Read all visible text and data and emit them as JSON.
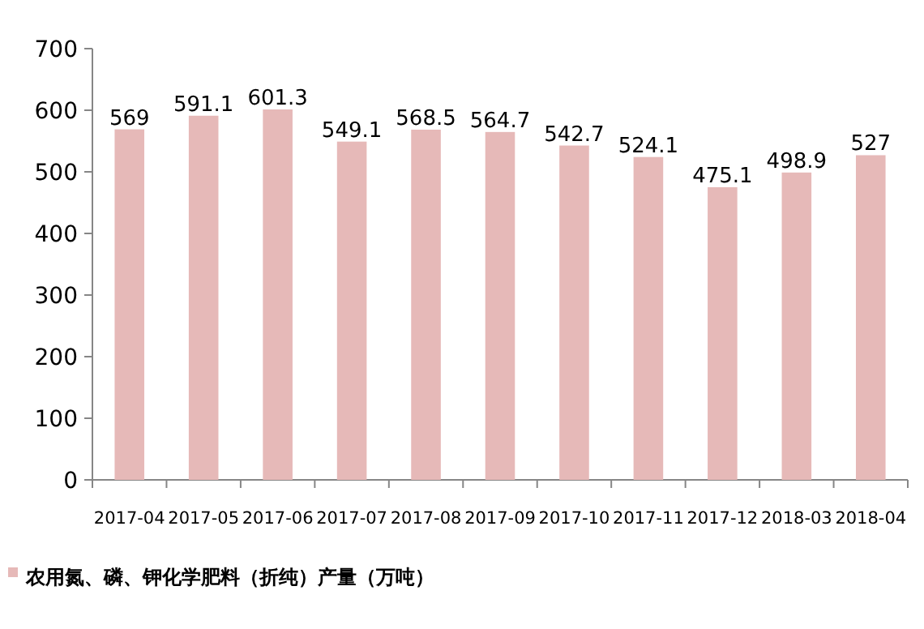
{
  "chart_data": {
    "type": "bar",
    "categories": [
      "2017-04",
      "2017-05",
      "2017-06",
      "2017-07",
      "2017-08",
      "2017-09",
      "2017-10",
      "2017-11",
      "2017-12",
      "2018-03",
      "2018-04"
    ],
    "series": [
      {
        "name": "农用氮、磷、钾化学肥料（折纯）产量（万吨）",
        "color": "#e6b9b8",
        "values": [
          569,
          591.1,
          601.3,
          549.1,
          568.5,
          564.7,
          542.7,
          524.1,
          475.1,
          498.9,
          527
        ]
      }
    ],
    "ylim": [
      0,
      700
    ],
    "yticks": [
      0,
      100,
      200,
      300,
      400,
      500,
      600,
      700
    ],
    "data_labels": true,
    "legend": "bottom left"
  }
}
